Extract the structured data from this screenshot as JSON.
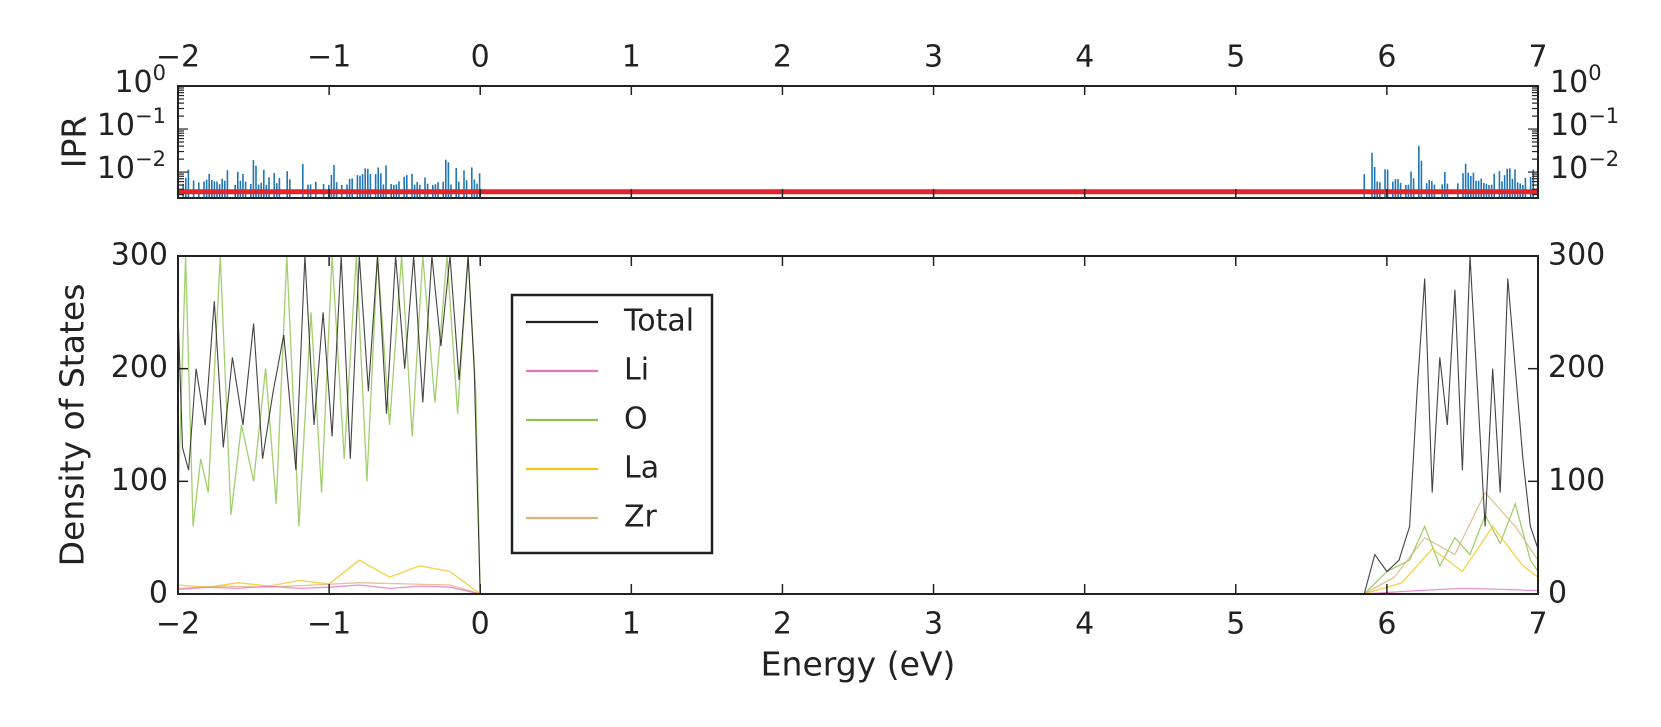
{
  "chart_data": [
    {
      "type": "bar",
      "panel": "top",
      "ylabel": "IPR",
      "xlabel": "",
      "yscale": "log",
      "xlim": [
        -2,
        7
      ],
      "ylim": [
        0.0025,
        1
      ],
      "x_ticks": [
        "−2",
        "−1",
        "0",
        "1",
        "2",
        "3",
        "4",
        "5",
        "6",
        "7"
      ],
      "y_ticks": [
        {
          "value": 1,
          "base": "10",
          "exp": "0"
        },
        {
          "value": 0.1,
          "base": "10",
          "exp": "−1"
        },
        {
          "value": 0.01,
          "base": "10",
          "exp": "−2"
        }
      ],
      "threshold": {
        "value": 0.0035,
        "color": "#e3242b"
      },
      "bar_color": "#1f77b4",
      "bar_regions": [
        {
          "x_range": [
            -2.0,
            0.0
          ],
          "ipr_range": [
            0.005,
            0.025
          ]
        },
        {
          "x_range": [
            5.85,
            7.0
          ],
          "ipr_range": [
            0.005,
            0.06
          ]
        }
      ],
      "grid": false
    },
    {
      "type": "line",
      "panel": "bottom",
      "xlabel": "Energy (eV)",
      "ylabel": "Density of States",
      "xlim": [
        -2,
        7
      ],
      "ylim": [
        0,
        300
      ],
      "x_ticks": [
        "−2",
        "−1",
        "0",
        "1",
        "2",
        "3",
        "4",
        "5",
        "6",
        "7"
      ],
      "y_ticks": [
        "0",
        "100",
        "200",
        "300"
      ],
      "legend_position": "upper-left",
      "grid": false,
      "series": [
        {
          "name": "Total",
          "color": "#222222",
          "x": [
            -2.0,
            -1.97,
            -1.93,
            -1.88,
            -1.82,
            -1.76,
            -1.7,
            -1.64,
            -1.57,
            -1.5,
            -1.44,
            -1.37,
            -1.3,
            -1.22,
            -1.16,
            -1.1,
            -1.04,
            -0.98,
            -0.92,
            -0.86,
            -0.8,
            -0.74,
            -0.68,
            -0.62,
            -0.56,
            -0.5,
            -0.44,
            -0.38,
            -0.32,
            -0.26,
            -0.2,
            -0.14,
            -0.08,
            -0.04,
            0.0,
            5.85,
            5.92,
            6.0,
            6.08,
            6.15,
            6.2,
            6.25,
            6.3,
            6.35,
            6.4,
            6.45,
            6.5,
            6.55,
            6.6,
            6.65,
            6.7,
            6.75,
            6.8,
            6.85,
            6.9,
            6.95,
            7.0
          ],
          "y": [
            250,
            130,
            110,
            200,
            150,
            260,
            130,
            210,
            150,
            240,
            120,
            180,
            230,
            110,
            300,
            150,
            250,
            140,
            300,
            120,
            300,
            180,
            300,
            160,
            300,
            200,
            300,
            170,
            300,
            220,
            300,
            190,
            300,
            200,
            0,
            0,
            35,
            20,
            30,
            60,
            180,
            280,
            90,
            210,
            150,
            270,
            110,
            300,
            180,
            60,
            200,
            90,
            280,
            200,
            120,
            60,
            40
          ]
        },
        {
          "name": "Li",
          "color": "#e377c2",
          "x": [
            -2.0,
            -1.8,
            -1.6,
            -1.4,
            -1.2,
            -1.0,
            -0.8,
            -0.6,
            -0.4,
            -0.2,
            0.0,
            5.85,
            6.2,
            6.5,
            6.8,
            7.0
          ],
          "y": [
            4,
            6,
            5,
            7,
            5,
            6,
            8,
            5,
            7,
            6,
            0,
            0,
            3,
            5,
            4,
            3
          ]
        },
        {
          "name": "O",
          "color": "#8bc34a",
          "x": [
            -2.0,
            -1.95,
            -1.9,
            -1.85,
            -1.8,
            -1.72,
            -1.65,
            -1.58,
            -1.5,
            -1.42,
            -1.35,
            -1.28,
            -1.2,
            -1.12,
            -1.05,
            -0.98,
            -0.9,
            -0.82,
            -0.75,
            -0.68,
            -0.6,
            -0.52,
            -0.45,
            -0.38,
            -0.3,
            -0.22,
            -0.15,
            -0.08,
            -0.03,
            0.0,
            5.85,
            6.0,
            6.15,
            6.25,
            6.35,
            6.45,
            6.55,
            6.65,
            6.75,
            6.85,
            6.95,
            7.0
          ],
          "y": [
            80,
            300,
            60,
            120,
            90,
            300,
            70,
            150,
            100,
            200,
            80,
            300,
            60,
            250,
            90,
            300,
            120,
            300,
            100,
            300,
            150,
            300,
            140,
            300,
            170,
            300,
            160,
            300,
            180,
            0,
            0,
            20,
            30,
            60,
            25,
            50,
            35,
            70,
            45,
            80,
            30,
            20
          ]
        },
        {
          "name": "La",
          "color": "#f5c518",
          "x": [
            -2.0,
            -1.8,
            -1.6,
            -1.4,
            -1.2,
            -1.0,
            -0.8,
            -0.6,
            -0.4,
            -0.2,
            0.0,
            5.85,
            6.1,
            6.3,
            6.5,
            6.7,
            6.9,
            7.0
          ],
          "y": [
            8,
            6,
            10,
            7,
            12,
            9,
            30,
            15,
            25,
            20,
            0,
            0,
            10,
            40,
            20,
            60,
            25,
            15
          ]
        },
        {
          "name": "Zr",
          "color": "#d9b47a",
          "x": [
            -2.0,
            -1.7,
            -1.4,
            -1.1,
            -0.8,
            -0.5,
            -0.2,
            0.0,
            5.85,
            6.05,
            6.25,
            6.45,
            6.65,
            6.85,
            7.0
          ],
          "y": [
            5,
            7,
            6,
            8,
            10,
            9,
            8,
            0,
            0,
            15,
            50,
            35,
            90,
            60,
            30
          ]
        }
      ]
    }
  ]
}
